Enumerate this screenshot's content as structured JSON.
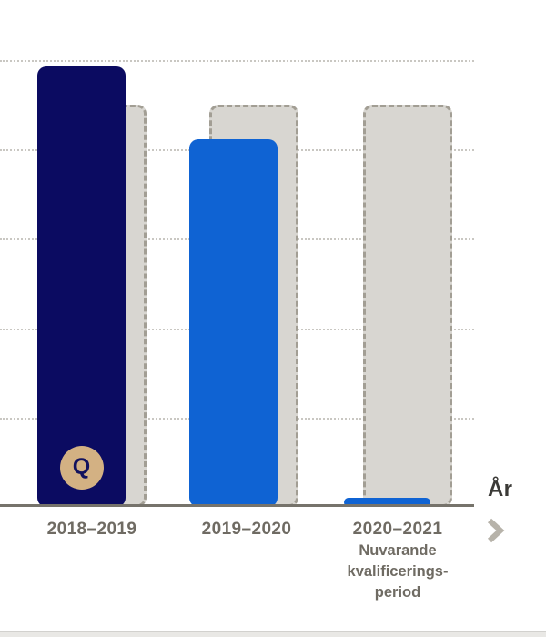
{
  "chart_data": {
    "type": "bar",
    "title": "",
    "categories": [
      "2018–2019",
      "2019–2020",
      "2020–2021"
    ],
    "series": [
      {
        "name": "filled_period_bars",
        "values": [
          4.93,
          4.11,
          0.1
        ],
        "colors": [
          "#0b0b61",
          "#0f63d3",
          "#0f63d3"
        ]
      },
      {
        "name": "dashed_target_outline_bars",
        "values": [
          4.5,
          4.5,
          4.5
        ],
        "color": "#d8d6d1"
      }
    ],
    "markers": [
      {
        "category_index": 0,
        "label": "Q",
        "position_value": 0.44
      }
    ],
    "xlabel": "År",
    "ylabel": "",
    "ylim": [
      0,
      5.3
    ],
    "gridline_values": [
      1,
      2,
      3,
      4,
      5
    ],
    "grid": "dotted-horizontal",
    "y_tick_labels_visible": false,
    "legend": "none"
  },
  "x_axis": {
    "axis_title": "År",
    "labels": [
      {
        "year": "2018–2019",
        "sublines": []
      },
      {
        "year": "2019–2020",
        "sublines": []
      },
      {
        "year": "2020–2021",
        "sublines": [
          "Nuvarande",
          "kvalificerings-",
          "period"
        ]
      }
    ]
  },
  "badge": {
    "label": "Q"
  },
  "nav": {
    "next_icon": "chevron-right"
  },
  "colors": {
    "bar_navy": "#0b0b61",
    "bar_blue": "#0f63d3",
    "target_fill": "#d8d6d1",
    "target_border": "#a29e94",
    "gridline": "#c9c7c2",
    "axis_line": "#76736b",
    "label_text": "#6f6b63",
    "axis_title_text": "#3b3a37",
    "chevron": "#b7b3aa",
    "badge_fill": "#d3b183",
    "badge_text": "#12125e",
    "footer_strip": "#e9e8e5"
  }
}
